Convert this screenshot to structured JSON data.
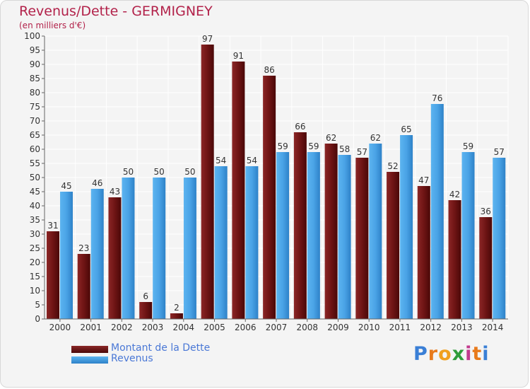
{
  "chart_data": {
    "type": "bar",
    "title": "Revenus/Dette - GERMIGNEY",
    "subtitle": "(en milliers d'€)",
    "categories": [
      "2000",
      "2001",
      "2002",
      "2003",
      "2004",
      "2005",
      "2006",
      "2007",
      "2008",
      "2009",
      "2010",
      "2011",
      "2012",
      "2013",
      "2014"
    ],
    "series": [
      {
        "name": "Montant de la Dette",
        "color": "#7a1a1a",
        "values": [
          31,
          23,
          43,
          6,
          2,
          97,
          91,
          86,
          66,
          62,
          57,
          52,
          47,
          42,
          36
        ]
      },
      {
        "name": "Revenus",
        "color": "#4aa3e6",
        "values": [
          45,
          46,
          50,
          50,
          50,
          54,
          54,
          59,
          59,
          58,
          62,
          65,
          76,
          59,
          57
        ]
      }
    ],
    "ylim": [
      0,
      100
    ],
    "yticks": [
      0,
      5,
      10,
      15,
      20,
      25,
      30,
      35,
      40,
      45,
      50,
      55,
      60,
      65,
      70,
      75,
      80,
      85,
      90,
      95,
      100
    ],
    "grid": true,
    "legend_position": "bottom-left"
  },
  "logo": {
    "text": "Proxiti"
  }
}
